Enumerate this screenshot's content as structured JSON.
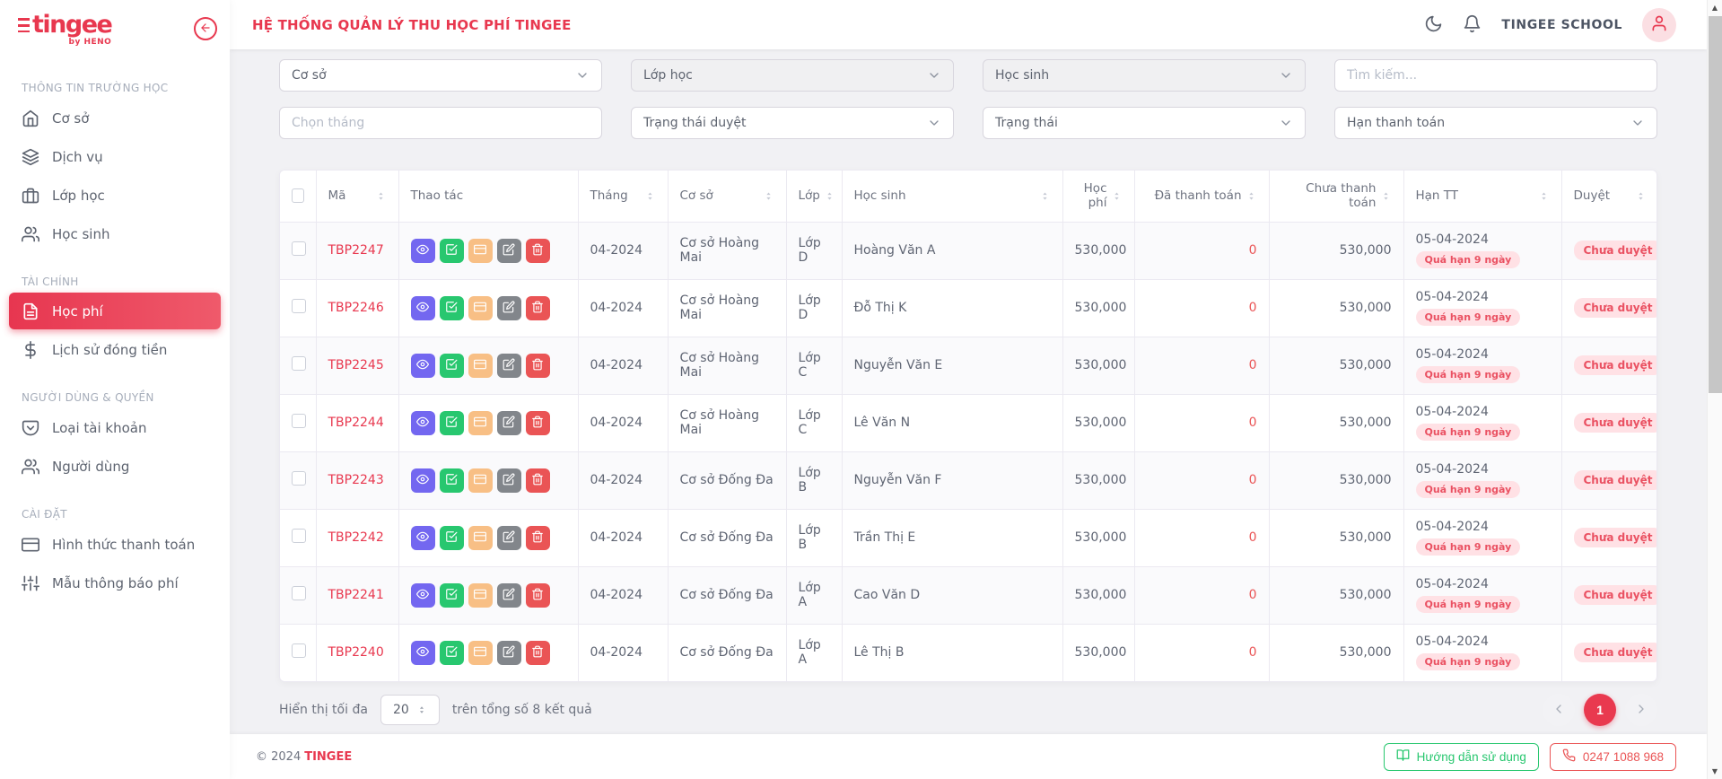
{
  "app": {
    "title": "HỆ THỐNG QUẢN LÝ THU HỌC PHÍ TINGEE",
    "logo_brand": "tingee",
    "logo_sub": "by HENO",
    "account_name": "TINGEE SCHOOL",
    "colors": {
      "primary": "#e8384f",
      "purple": "#7367f0",
      "green": "#28c76f",
      "peach": "#f8bf85",
      "gray": "#82868b",
      "danger": "#ea5455",
      "badge_bg": "#ffe1e5"
    }
  },
  "sidebar": {
    "sections": [
      {
        "header": "THÔNG TIN TRƯỜNG HỌC",
        "items": [
          {
            "label": "Cơ sở",
            "icon": "home"
          },
          {
            "label": "Dịch vụ",
            "icon": "layers"
          },
          {
            "label": "Lớp học",
            "icon": "briefcase"
          },
          {
            "label": "Học sinh",
            "icon": "users"
          }
        ]
      },
      {
        "header": "TÀI CHÍNH",
        "items": [
          {
            "label": "Học phí",
            "icon": "file-text",
            "active": true
          },
          {
            "label": "Lịch sử đóng tiền",
            "icon": "dollar"
          }
        ]
      },
      {
        "header": "NGƯỜI DÙNG & QUYỀN",
        "items": [
          {
            "label": "Loại tài khoản",
            "icon": "pocket"
          },
          {
            "label": "Người dùng",
            "icon": "users"
          }
        ]
      },
      {
        "header": "CÀI ĐẶT",
        "items": [
          {
            "label": "Hình thức thanh toán",
            "icon": "credit-card"
          },
          {
            "label": "Mẫu thông báo phí",
            "icon": "sliders"
          }
        ]
      }
    ]
  },
  "filters": {
    "fields": [
      {
        "text": "Cơ sở",
        "kind": "select",
        "tone": "white",
        "placeholder": false,
        "name": "campus-select"
      },
      {
        "text": "Lớp học",
        "kind": "select",
        "tone": "gray",
        "placeholder": false,
        "name": "class-select"
      },
      {
        "text": "Học sinh",
        "kind": "select",
        "tone": "gray",
        "placeholder": false,
        "name": "student-select"
      },
      {
        "text": "Tìm kiếm...",
        "kind": "input",
        "tone": "white",
        "placeholder": true,
        "name": "search-input"
      },
      {
        "text": "Chọn tháng",
        "kind": "input",
        "tone": "white",
        "placeholder": true,
        "name": "month-input"
      },
      {
        "text": "Trạng thái duyệt",
        "kind": "select",
        "tone": "white",
        "placeholder": false,
        "name": "approval-status-select"
      },
      {
        "text": "Trạng thái",
        "kind": "select",
        "tone": "white",
        "placeholder": false,
        "name": "status-select"
      },
      {
        "text": "Hạn thanh toán",
        "kind": "select",
        "tone": "white",
        "placeholder": false,
        "name": "due-date-select"
      }
    ]
  },
  "table": {
    "columns": [
      {
        "label": "",
        "sortable": false
      },
      {
        "label": "Mã",
        "sortable": true
      },
      {
        "label": "Thao tác",
        "sortable": false
      },
      {
        "label": "Tháng",
        "sortable": true
      },
      {
        "label": "Cơ sở",
        "sortable": true
      },
      {
        "label": "Lớp",
        "sortable": true
      },
      {
        "label": "Học sinh",
        "sortable": true
      },
      {
        "label": "Học phí",
        "sortable": true
      },
      {
        "label": "Đã thanh toán",
        "sortable": true
      },
      {
        "label": "Chưa thanh toán",
        "sortable": true
      },
      {
        "label": "Hạn TT",
        "sortable": true
      },
      {
        "label": "Duyệt",
        "sortable": true
      }
    ],
    "actions": [
      {
        "name": "view",
        "icon": "eye",
        "color": "#7367f0"
      },
      {
        "name": "confirm",
        "icon": "check-square",
        "color": "#28c76f"
      },
      {
        "name": "payment",
        "icon": "credit-card",
        "color": "#f8bf85"
      },
      {
        "name": "edit",
        "icon": "edit",
        "color": "#82868b"
      },
      {
        "name": "delete",
        "icon": "trash",
        "color": "#ea5455"
      }
    ],
    "rows": [
      {
        "code": "TBP2247",
        "month": "04-2024",
        "campus": "Cơ sở Hoàng Mai",
        "class": "Lớp D",
        "student": "Hoàng Văn A",
        "fee": "530,000",
        "paid": "0",
        "unpaid": "530,000",
        "due": "05-04-2024",
        "overdue": "Quá hạn 9 ngày",
        "approval": "Chưa duyệt"
      },
      {
        "code": "TBP2246",
        "month": "04-2024",
        "campus": "Cơ sở Hoàng Mai",
        "class": "Lớp D",
        "student": "Đỗ Thị K",
        "fee": "530,000",
        "paid": "0",
        "unpaid": "530,000",
        "due": "05-04-2024",
        "overdue": "Quá hạn 9 ngày",
        "approval": "Chưa duyệt"
      },
      {
        "code": "TBP2245",
        "month": "04-2024",
        "campus": "Cơ sở Hoàng Mai",
        "class": "Lớp C",
        "student": "Nguyễn Văn E",
        "fee": "530,000",
        "paid": "0",
        "unpaid": "530,000",
        "due": "05-04-2024",
        "overdue": "Quá hạn 9 ngày",
        "approval": "Chưa duyệt"
      },
      {
        "code": "TBP2244",
        "month": "04-2024",
        "campus": "Cơ sở Hoàng Mai",
        "class": "Lớp C",
        "student": "Lê Văn N",
        "fee": "530,000",
        "paid": "0",
        "unpaid": "530,000",
        "due": "05-04-2024",
        "overdue": "Quá hạn 9 ngày",
        "approval": "Chưa duyệt"
      },
      {
        "code": "TBP2243",
        "month": "04-2024",
        "campus": "Cơ sở Đống Đa",
        "class": "Lớp B",
        "student": "Nguyễn Văn F",
        "fee": "530,000",
        "paid": "0",
        "unpaid": "530,000",
        "due": "05-04-2024",
        "overdue": "Quá hạn 9 ngày",
        "approval": "Chưa duyệt"
      },
      {
        "code": "TBP2242",
        "month": "04-2024",
        "campus": "Cơ sở Đống Đa",
        "class": "Lớp B",
        "student": "Trần Thị E",
        "fee": "530,000",
        "paid": "0",
        "unpaid": "530,000",
        "due": "05-04-2024",
        "overdue": "Quá hạn 9 ngày",
        "approval": "Chưa duyệt"
      },
      {
        "code": "TBP2241",
        "month": "04-2024",
        "campus": "Cơ sở Đống Đa",
        "class": "Lớp A",
        "student": "Cao Văn D",
        "fee": "530,000",
        "paid": "0",
        "unpaid": "530,000",
        "due": "05-04-2024",
        "overdue": "Quá hạn 9 ngày",
        "approval": "Chưa duyệt"
      },
      {
        "code": "TBP2240",
        "month": "04-2024",
        "campus": "Cơ sở Đống Đa",
        "class": "Lớp A",
        "student": "Lê Thị B",
        "fee": "530,000",
        "paid": "0",
        "unpaid": "530,000",
        "due": "05-04-2024",
        "overdue": "Quá hạn 9 ngày",
        "approval": "Chưa duyệt"
      }
    ]
  },
  "pagination": {
    "per_page_label": "Hiển thị tối đa",
    "per_page_value": "20",
    "total_label": "trên tổng số 8 kết quả",
    "current_page": "1"
  },
  "footer": {
    "copyright": "© 2024",
    "brand": "TINGEE",
    "guide_label": "Hướng dẫn sử dụng",
    "phone_label": "0247 1088 968"
  }
}
